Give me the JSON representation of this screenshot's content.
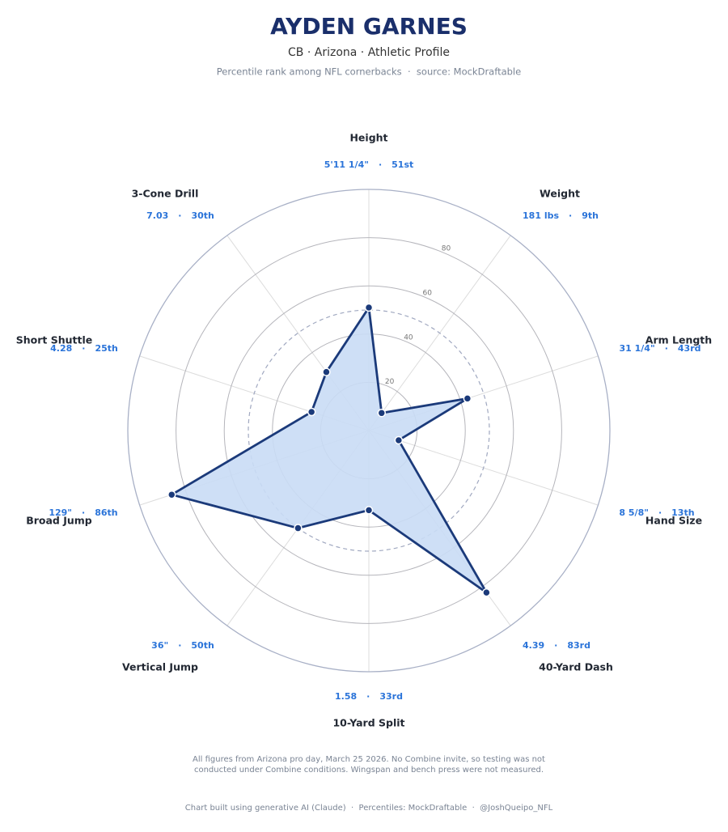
{
  "chart_data": {
    "type": "radar",
    "title": "AYDEN GARNES",
    "subtitle": "CB · Arizona · Athletic Profile",
    "note": "Percentile rank among NFL cornerbacks  ·  source: MockDraftable",
    "categories": [
      "Height",
      "Weight",
      "Arm Length",
      "Hand Size",
      "40-Yard Dash",
      "10-Yard Split",
      "Vertical Jump",
      "Broad Jump",
      "Short Shuttle",
      "3-Cone Drill"
    ],
    "measurements": [
      "5'11 1/4\"",
      "181 lbs",
      "31 1/4\"",
      "8 5/8\"",
      "4.39",
      "1.58",
      "36\"",
      "129\"",
      "4.28",
      "7.03"
    ],
    "label_separator": "·",
    "series": [
      {
        "name": "Ayden Garnes",
        "color": "#1b3a7a",
        "fill": "#c9dbf5",
        "values": [
          51,
          9,
          43,
          13,
          83,
          33,
          50,
          86,
          25,
          30
        ],
        "value_labels": [
          "51st",
          "9th",
          "43rd",
          "13th",
          "83rd",
          "33rd",
          "50th",
          "86th",
          "25th",
          "30th"
        ]
      }
    ],
    "ylim": [
      0,
      100
    ],
    "yticks": [
      20,
      40,
      60,
      80
    ],
    "reference_line": 50,
    "footnote": [
      "All figures from Arizona pro day, March 25 2026. No Combine invite, so testing was not",
      "conducted under Combine conditions. Wingspan and bench press were not measured."
    ],
    "credit": "Chart built using generative AI (Claude)  ·  Percentiles: MockDraftable  ·  @JoshQueipo_NFL"
  }
}
